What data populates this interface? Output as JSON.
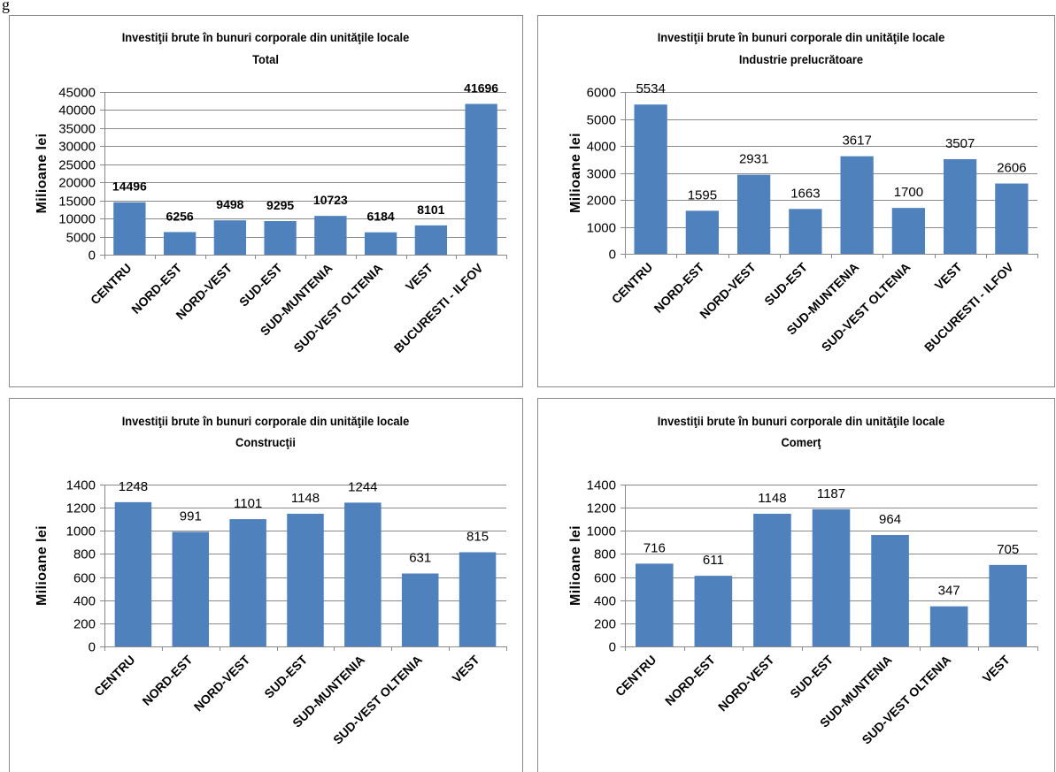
{
  "page_fragment": "g",
  "colors": {
    "bar": "#4F81BD",
    "gridline": "#8A8A8A",
    "frame": "#8A8A8A",
    "text": "#000000"
  },
  "chart_data": [
    {
      "type": "bar",
      "title": "Investiţii brute în bunuri corporale din unităţile locale",
      "subtitle": "Total",
      "xlabel": "",
      "ylabel": "Milioane lei",
      "categories": [
        "CENTRU",
        "NORD-EST",
        "NORD-VEST",
        "SUD-EST",
        "SUD-MUNTENIA",
        "SUD-VEST OLTENIA",
        "VEST",
        "BUCURESTI - ILFOV"
      ],
      "values": [
        14496,
        6256,
        9498,
        9295,
        10723,
        6184,
        8101,
        41696
      ],
      "data_labels": true,
      "ylim": [
        0,
        45000
      ],
      "yticks": [
        0,
        5000,
        10000,
        15000,
        20000,
        25000,
        30000,
        35000,
        40000,
        45000
      ],
      "grid": true,
      "legend": "none"
    },
    {
      "type": "bar",
      "title": "Investiţii brute în bunuri corporale din unităţile locale",
      "subtitle": "Industrie prelucrătoare",
      "xlabel": "",
      "ylabel": "Milioane lei",
      "categories": [
        "CENTRU",
        "NORD-EST",
        "NORD-VEST",
        "SUD-EST",
        "SUD-MUNTENIA",
        "SUD-VEST OLTENIA",
        "VEST",
        "BUCURESTI - ILFOV"
      ],
      "values": [
        5534,
        1595,
        2931,
        1663,
        3617,
        1700,
        3507,
        2606
      ],
      "data_labels": true,
      "ylim": [
        0,
        6000
      ],
      "yticks": [
        0,
        1000,
        2000,
        3000,
        4000,
        5000,
        6000
      ],
      "grid": true,
      "legend": "none"
    },
    {
      "type": "bar",
      "title": "Investiţii brute în bunuri corporale din unităţile locale",
      "subtitle": "Construcţii",
      "xlabel": "",
      "ylabel": "Milioane lei",
      "categories": [
        "CENTRU",
        "NORD-EST",
        "NORD-VEST",
        "SUD-EST",
        "SUD-MUNTENIA",
        "SUD-VEST OLTENIA",
        "VEST"
      ],
      "values": [
        1248,
        991,
        1101,
        1148,
        1244,
        631,
        815
      ],
      "data_labels": true,
      "ylim": [
        0,
        1400
      ],
      "yticks": [
        0,
        200,
        400,
        600,
        800,
        1000,
        1200,
        1400
      ],
      "grid": true,
      "legend": "none"
    },
    {
      "type": "bar",
      "title": "Investiţii brute în bunuri corporale din unităţile locale",
      "subtitle": "Comerţ",
      "xlabel": "",
      "ylabel": "Milioane lei",
      "categories": [
        "CENTRU",
        "NORD-EST",
        "NORD-VEST",
        "SUD-EST",
        "SUD-MUNTENIA",
        "SUD-VEST OLTENIA",
        "VEST"
      ],
      "values": [
        716,
        611,
        1148,
        1187,
        964,
        347,
        705
      ],
      "data_labels": true,
      "ylim": [
        0,
        1400
      ],
      "yticks": [
        0,
        200,
        400,
        600,
        800,
        1000,
        1200,
        1400
      ],
      "grid": true,
      "legend": "none"
    }
  ]
}
